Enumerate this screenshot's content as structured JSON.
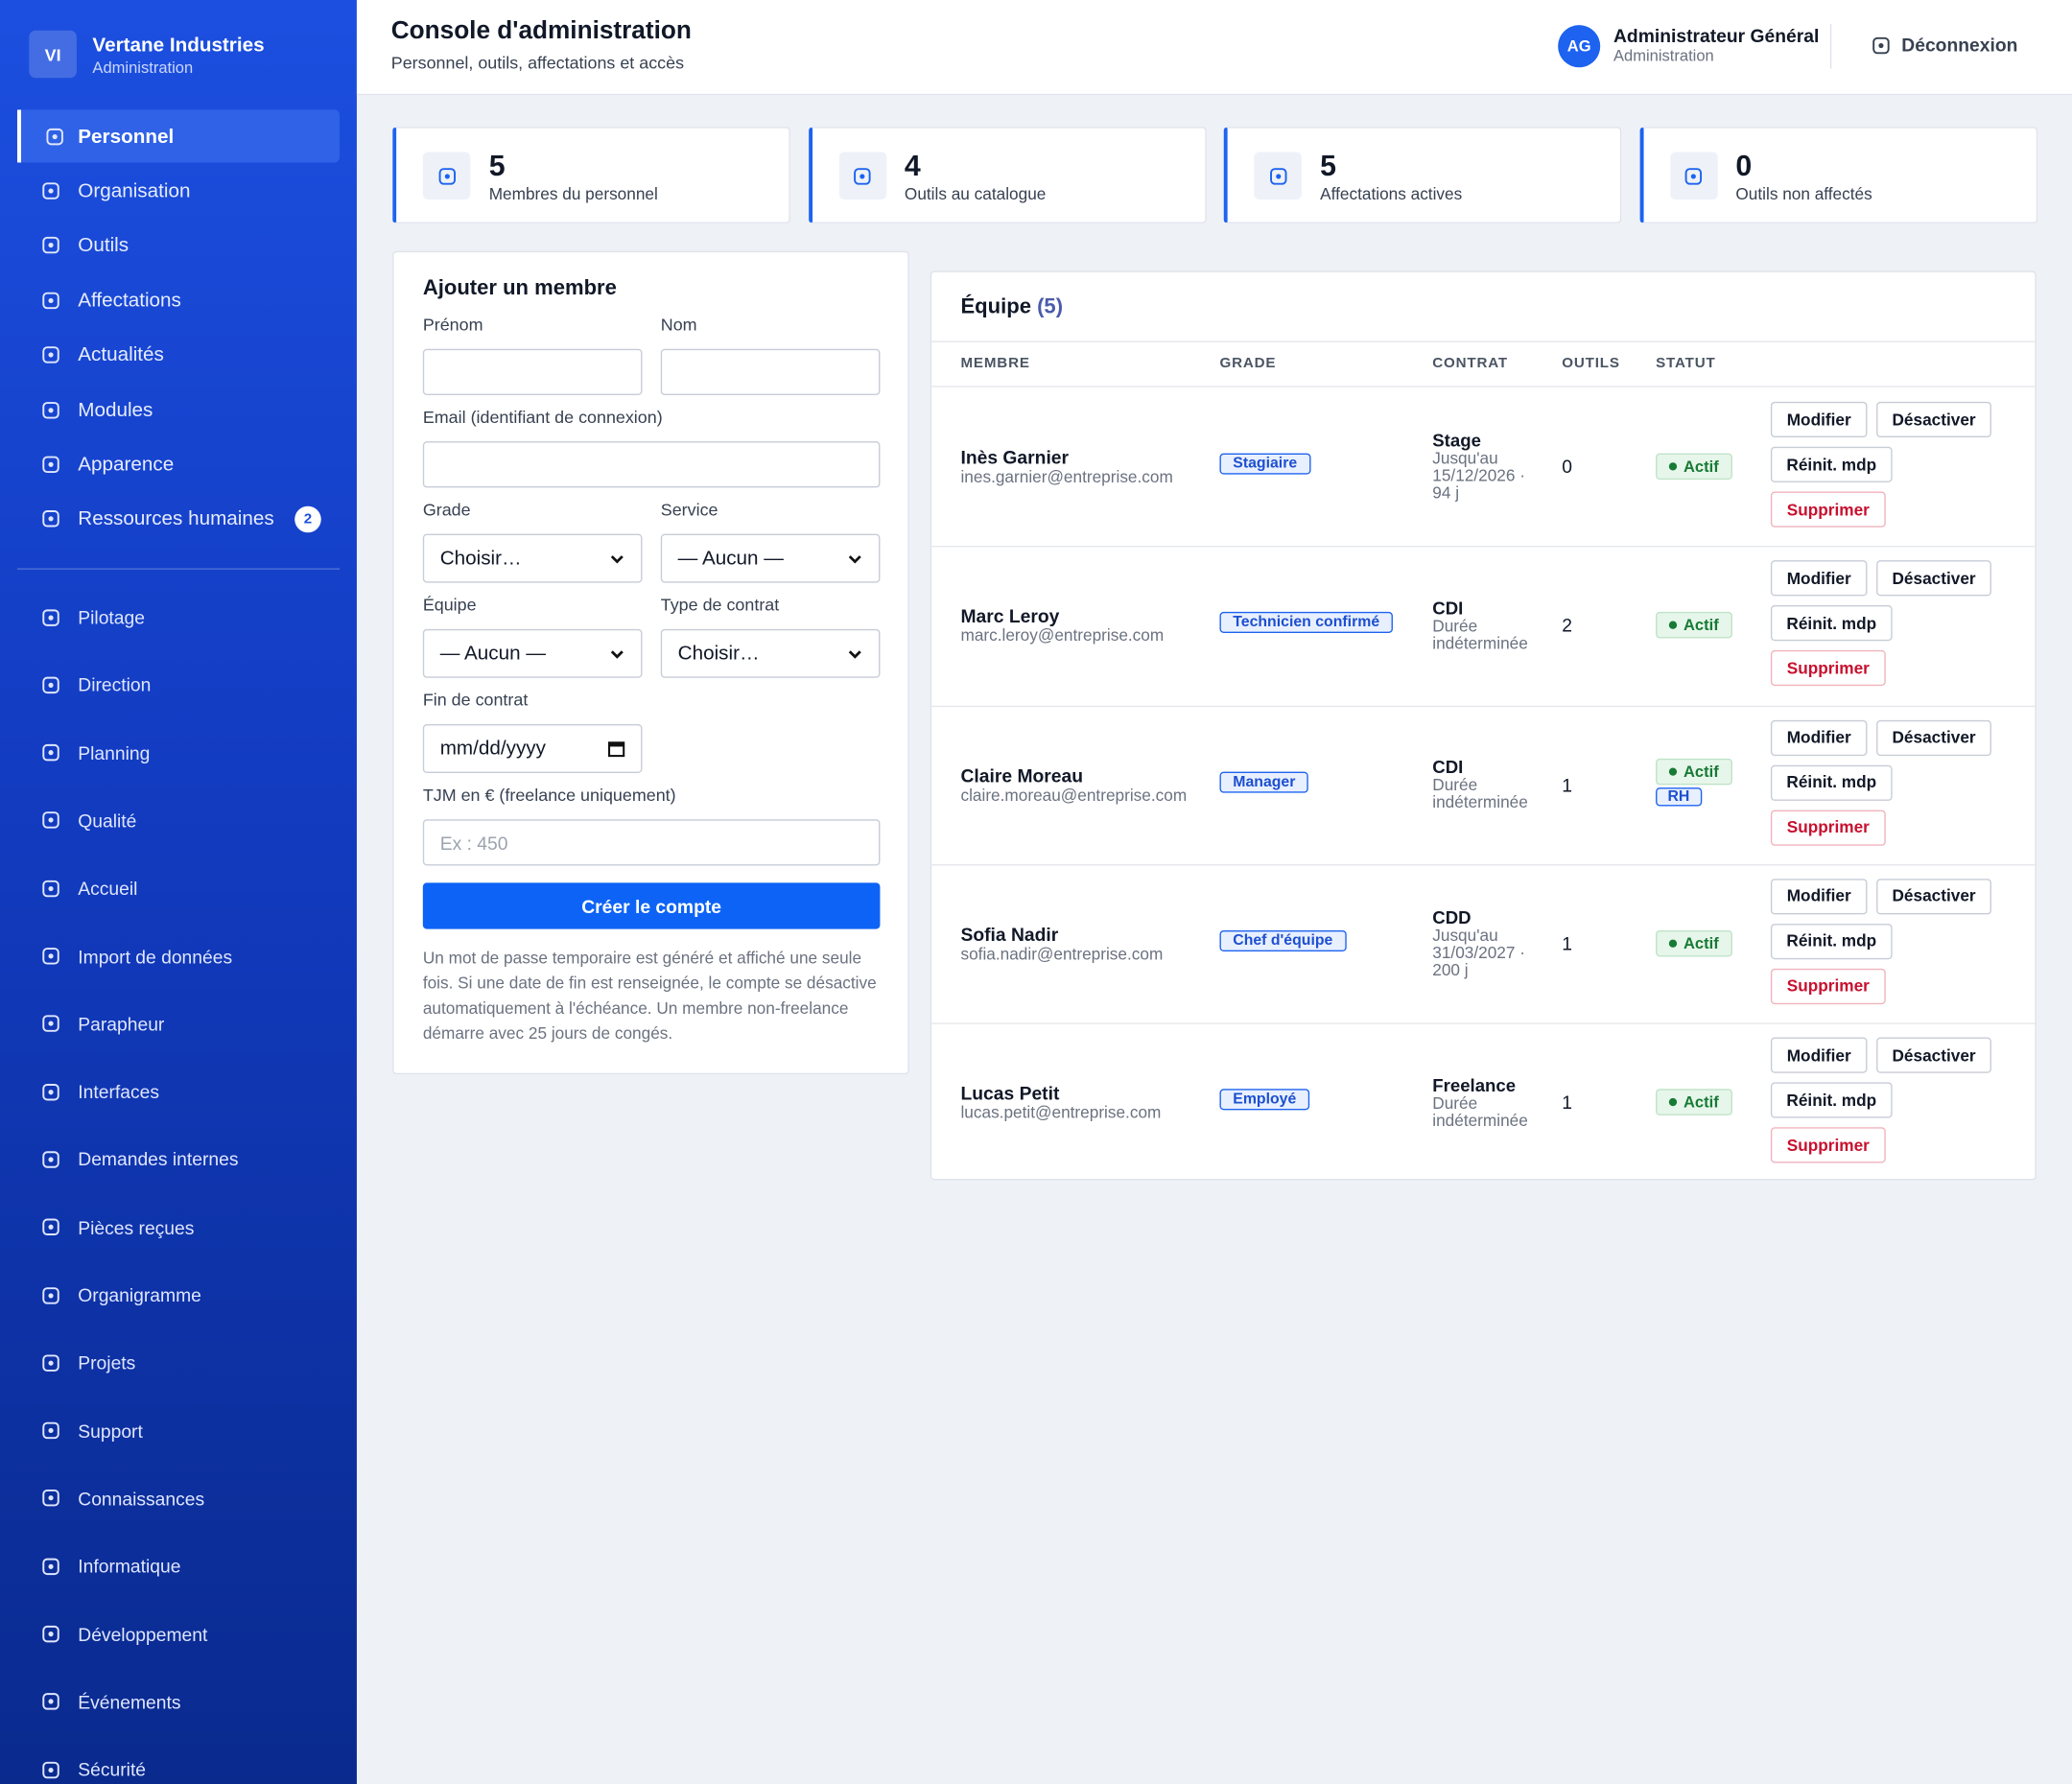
{
  "sidebar": {
    "initials": "VI",
    "name": "Vertane Industries",
    "subtitle": "Administration",
    "primary": [
      {
        "label": "Personnel",
        "active": true
      },
      {
        "label": "Organisation"
      },
      {
        "label": "Outils"
      },
      {
        "label": "Affectations"
      },
      {
        "label": "Actualités"
      },
      {
        "label": "Modules"
      },
      {
        "label": "Apparence"
      },
      {
        "label": "Ressources humaines",
        "badge": 2
      }
    ],
    "secondary": [
      "Pilotage",
      "Direction",
      "Planning",
      "Qualité",
      "Accueil",
      "Import de données",
      "Parapheur",
      "Interfaces",
      "Demandes internes",
      "Pièces reçues",
      "Organigramme",
      "Projets",
      "Support",
      "Connaissances",
      "Informatique",
      "Développement",
      "Événements",
      "Sécurité"
    ]
  },
  "header": {
    "title": "Console d'administration",
    "subtitle": "Personnel, outils, affectations et accès",
    "user_initials": "AG",
    "user_name": "Administrateur Général",
    "user_role": "Administration",
    "logout": "Déconnexion"
  },
  "stats": [
    {
      "value": 5,
      "label": "Membres du personnel"
    },
    {
      "value": 4,
      "label": "Outils au catalogue"
    },
    {
      "value": 5,
      "label": "Affectations actives"
    },
    {
      "value": 0,
      "label": "Outils non affectés"
    }
  ],
  "form": {
    "title": "Ajouter un membre",
    "first_name": "Prénom",
    "last_name": "Nom",
    "email": "Email (identifiant de connexion)",
    "grade": "Grade",
    "grade_value": "Choisir…",
    "service": "Service",
    "service_value": "— Aucun —",
    "team": "Équipe",
    "team_value": "— Aucun —",
    "contract": "Type de contrat",
    "contract_value": "Choisir…",
    "end": "Fin de contrat",
    "end_value": "mm/dd/yyyy",
    "rate": "TJM en € (freelance uniquement)",
    "rate_placeholder": "Ex : 450",
    "submit": "Créer le compte",
    "note": "Un mot de passe temporaire est généré et affiché une seule fois. Si une date de fin est renseignée, le compte se désactive automatiquement à l'échéance. Un membre non-freelance démarre avec 25 jours de congés."
  },
  "table": {
    "title": "Équipe",
    "count": "(5)",
    "columns": [
      "MEMBRE",
      "GRADE",
      "CONTRAT",
      "OUTILS",
      "STATUT"
    ],
    "actions": [
      "Modifier",
      "Désactiver",
      "Réinit. mdp",
      "Supprimer"
    ],
    "rows": [
      {
        "name": "Inès Garnier",
        "email": "ines.garnier@entreprise.com",
        "grade": "Stagiaire",
        "contract": "Stage",
        "detail": "Jusqu'au 15/12/2026 · 94 j",
        "tools": 0,
        "status": "Actif"
      },
      {
        "name": "Marc Leroy",
        "email": "marc.leroy@entreprise.com",
        "grade": "Technicien confirmé",
        "contract": "CDI",
        "detail": "Durée indéterminée",
        "tools": 2,
        "status": "Actif"
      },
      {
        "name": "Claire Moreau",
        "email": "claire.moreau@entreprise.com",
        "grade": "Manager",
        "contract": "CDI",
        "detail": "Durée indéterminée",
        "tools": 1,
        "status": "Actif",
        "extra": "RH"
      },
      {
        "name": "Sofia Nadir",
        "email": "sofia.nadir@entreprise.com",
        "grade": "Chef d'équipe",
        "contract": "CDD",
        "detail": "Jusqu'au 31/03/2027 · 200 j",
        "tools": 1,
        "status": "Actif"
      },
      {
        "name": "Lucas Petit",
        "email": "lucas.petit@entreprise.com",
        "grade": "Employé",
        "contract": "Freelance",
        "detail": "Durée indéterminée",
        "tools": 1,
        "status": "Actif"
      }
    ]
  }
}
